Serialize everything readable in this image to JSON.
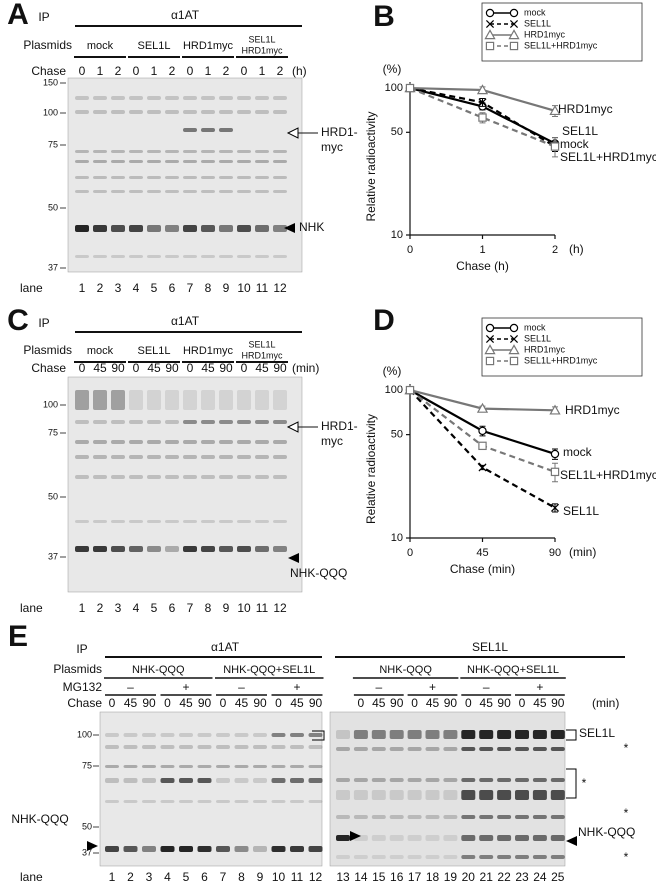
{
  "panel_a": {
    "letter": "A",
    "ip_label": "IP",
    "ip": "α1AT",
    "plasmids_label": "Plasmids",
    "groups": [
      [
        "mock"
      ],
      [
        "SEL1L"
      ],
      [
        "HRD1myc"
      ],
      [
        "SEL1L",
        "HRD1myc"
      ]
    ],
    "chase_label": "Chase",
    "chase": [
      0,
      1,
      2
    ],
    "chase_unit": "(h)",
    "markers": [
      150,
      100,
      75,
      50,
      37
    ],
    "lane_label": "lane",
    "lanes": [
      1,
      2,
      3,
      4,
      5,
      6,
      7,
      8,
      9,
      10,
      11,
      12
    ],
    "annotations": [
      "HRD1-",
      "myc",
      "NHK"
    ]
  },
  "panel_c": {
    "letter": "C",
    "ip_label": "IP",
    "ip": "α1AT",
    "plasmids_label": "Plasmids",
    "groups": [
      [
        "mock"
      ],
      [
        "SEL1L"
      ],
      [
        "HRD1myc"
      ],
      [
        "SEL1L",
        "HRD1myc"
      ]
    ],
    "chase_label": "Chase",
    "chase": [
      0,
      45,
      90
    ],
    "chase_unit": "(min)",
    "markers": [
      100,
      75,
      50,
      37
    ],
    "lane_label": "lane",
    "lanes": [
      1,
      2,
      3,
      4,
      5,
      6,
      7,
      8,
      9,
      10,
      11,
      12
    ],
    "annotations": [
      "HRD1-",
      "myc",
      "NHK-QQQ"
    ]
  },
  "panel_e": {
    "letter": "E",
    "ip_label": "IP",
    "ip": [
      "α1AT",
      "SEL1L"
    ],
    "plasmids_label": "Plasmids",
    "plasmids": [
      "NHK-QQQ",
      "NHK-QQQ+SEL1L"
    ],
    "mg132_label": "MG132",
    "mg132": [
      "–",
      "+"
    ],
    "chase_label": "Chase",
    "chase": [
      0,
      45,
      90
    ],
    "chase_unit": "(min)",
    "markers": [
      100,
      75,
      50,
      37
    ],
    "lane_label": "lane",
    "lanes": [
      1,
      2,
      3,
      4,
      5,
      6,
      7,
      8,
      9,
      10,
      11,
      12,
      13,
      14,
      15,
      16,
      17,
      18,
      19,
      20,
      21,
      22,
      23,
      24,
      25
    ],
    "annotations": {
      "left": "NHK-QQQ",
      "sel1l": "SEL1L",
      "star": "*",
      "nhk": "NHK-QQQ"
    }
  },
  "chart_data": [
    {
      "type": "line",
      "panel": "B",
      "y_label": "Relative radioactivity",
      "y_unit": "(%)",
      "x_label": "Chase (h)",
      "x_unit": "(h)",
      "x": [
        0,
        1,
        2
      ],
      "xlim": [
        0,
        2
      ],
      "xticks": [
        0,
        1,
        2
      ],
      "ylim": [
        10,
        110
      ],
      "yticks": [
        10,
        50,
        100
      ],
      "log_y": true,
      "legend": "top-right",
      "series": [
        {
          "name": "mock",
          "color": "#000000",
          "dash": false,
          "marker": "circle",
          "values": [
            100,
            75,
            42
          ],
          "errors": [
            0,
            4,
            4
          ]
        },
        {
          "name": "SEL1L",
          "color": "#000000",
          "dash": true,
          "marker": "x",
          "values": [
            100,
            80,
            40
          ],
          "errors": [
            0,
            5,
            3
          ]
        },
        {
          "name": "HRD1myc",
          "color": "#777777",
          "dash": false,
          "marker": "triangle",
          "values": [
            100,
            97,
            70
          ],
          "errors": [
            0,
            5,
            6
          ]
        },
        {
          "name": "SEL1L+HRD1myc",
          "color": "#777777",
          "dash": true,
          "marker": "square",
          "values": [
            100,
            63,
            40
          ],
          "errors": [
            0,
            5,
            6
          ]
        }
      ],
      "annotations": [
        "HRD1myc",
        "SEL1L",
        "mock",
        "SEL1L+HRD1myc"
      ]
    },
    {
      "type": "line",
      "panel": "D",
      "y_label": "Relative radioactivity",
      "y_unit": "(%)",
      "x_label": "Chase (min)",
      "x_unit": "(min)",
      "x": [
        0,
        45,
        90
      ],
      "xlim": [
        0,
        90
      ],
      "xticks": [
        0,
        45,
        90
      ],
      "ylim": [
        10,
        110
      ],
      "yticks": [
        10,
        50,
        100
      ],
      "log_y": true,
      "legend": "top-right",
      "series": [
        {
          "name": "mock",
          "color": "#000000",
          "dash": false,
          "marker": "circle",
          "values": [
            100,
            53,
            37
          ],
          "errors": [
            0,
            4,
            3
          ]
        },
        {
          "name": "SEL1L",
          "color": "#000000",
          "dash": true,
          "marker": "x",
          "values": [
            100,
            30,
            16
          ],
          "errors": [
            0,
            1,
            1
          ]
        },
        {
          "name": "HRD1myc",
          "color": "#777777",
          "dash": false,
          "marker": "triangle",
          "values": [
            100,
            75,
            73
          ],
          "errors": [
            0,
            3,
            4
          ]
        },
        {
          "name": "SEL1L+HRD1myc",
          "color": "#777777",
          "dash": true,
          "marker": "square",
          "values": [
            100,
            42,
            28
          ],
          "errors": [
            0,
            2,
            4
          ]
        }
      ],
      "annotations": [
        "HRD1myc",
        "mock",
        "SEL1L+HRD1myc",
        "SEL1L"
      ]
    }
  ]
}
